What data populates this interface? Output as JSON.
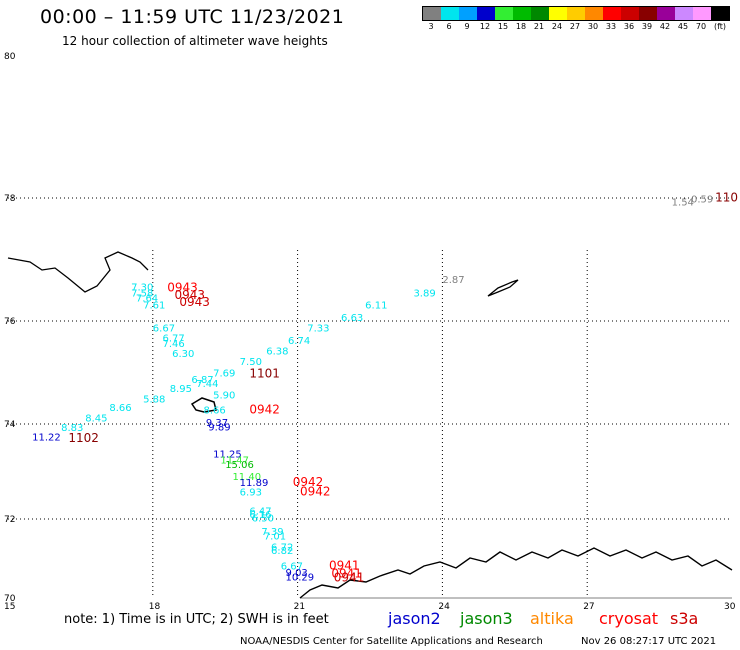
{
  "header": {
    "title": "00:00 – 11:59 UTC 11/23/2021",
    "subtitle": "12 hour collection of altimeter wave heights"
  },
  "legend": {
    "unit": "(ft)",
    "bins": [
      {
        "label": "3",
        "color": "#808080"
      },
      {
        "label": "6",
        "color": "#00e5ee"
      },
      {
        "label": "9",
        "color": "#00a0ff"
      },
      {
        "label": "12",
        "color": "#0000cc"
      },
      {
        "label": "15",
        "color": "#33ee33"
      },
      {
        "label": "18",
        "color": "#00bb00"
      },
      {
        "label": "21",
        "color": "#008800"
      },
      {
        "label": "24",
        "color": "#ffff00"
      },
      {
        "label": "27",
        "color": "#ffcc00"
      },
      {
        "label": "30",
        "color": "#ff8800"
      },
      {
        "label": "33",
        "color": "#ff0000"
      },
      {
        "label": "36",
        "color": "#cc0000"
      },
      {
        "label": "39",
        "color": "#880000"
      },
      {
        "label": "42",
        "color": "#990099"
      },
      {
        "label": "45",
        "color": "#cc88ff"
      },
      {
        "label": "70",
        "color": "#ff99ff"
      },
      {
        "label": "",
        "color": "#000000"
      }
    ]
  },
  "map": {
    "lat_labels": [
      "80",
      "78",
      "76",
      "74",
      "72",
      "70"
    ],
    "lon_labels": [
      "15",
      "18",
      "21",
      "24",
      "27",
      "30"
    ],
    "lon_range": [
      15,
      30
    ],
    "lat_range": [
      70,
      80
    ]
  },
  "labels": [
    {
      "text": "1.54",
      "lon": 28.75,
      "lat": 77.88,
      "color": "#808080"
    },
    {
      "text": "0.59",
      "lon": 29.15,
      "lat": 77.93,
      "color": "#808080"
    },
    {
      "text": "110",
      "lon": 29.65,
      "lat": 77.94,
      "color": "#880000",
      "big": true
    },
    {
      "text": "2.87",
      "lon": 24.0,
      "lat": 76.62,
      "color": "#808080"
    },
    {
      "text": "3.89",
      "lon": 23.4,
      "lat": 76.4,
      "color": "#00e5ee"
    },
    {
      "text": "6.11",
      "lon": 22.4,
      "lat": 76.2,
      "color": "#00e5ee"
    },
    {
      "text": "6.63",
      "lon": 21.9,
      "lat": 76.0,
      "color": "#00e5ee"
    },
    {
      "text": "7.33",
      "lon": 21.2,
      "lat": 75.8,
      "color": "#00e5ee"
    },
    {
      "text": "6.74",
      "lon": 20.8,
      "lat": 75.55,
      "color": "#00e5ee"
    },
    {
      "text": "6.38",
      "lon": 20.35,
      "lat": 75.35,
      "color": "#00e5ee"
    },
    {
      "text": "7.50",
      "lon": 19.8,
      "lat": 75.15,
      "color": "#00e5ee"
    },
    {
      "text": "1101",
      "lon": 20.0,
      "lat": 74.9,
      "color": "#880000",
      "big": true
    },
    {
      "text": "7.69",
      "lon": 19.25,
      "lat": 74.92,
      "color": "#00e5ee"
    },
    {
      "text": "6.87",
      "lon": 18.8,
      "lat": 74.8,
      "color": "#00e5ee"
    },
    {
      "text": "7.44",
      "lon": 18.9,
      "lat": 74.72,
      "color": "#00e5ee"
    },
    {
      "text": "8.95",
      "lon": 18.35,
      "lat": 74.62,
      "color": "#00e5ee"
    },
    {
      "text": "5.88",
      "lon": 17.8,
      "lat": 74.42,
      "color": "#00e5ee"
    },
    {
      "text": "5.90",
      "lon": 19.25,
      "lat": 74.5,
      "color": "#00e5ee"
    },
    {
      "text": "8.66",
      "lon": 17.1,
      "lat": 74.25,
      "color": "#00e5ee"
    },
    {
      "text": "8.45",
      "lon": 16.6,
      "lat": 74.05,
      "color": "#00e5ee"
    },
    {
      "text": "8.83",
      "lon": 16.1,
      "lat": 73.85,
      "color": "#00e5ee"
    },
    {
      "text": "11.22",
      "lon": 15.5,
      "lat": 73.65,
      "color": "#0000cc"
    },
    {
      "text": "1102",
      "lon": 16.25,
      "lat": 73.62,
      "color": "#880000",
      "big": true
    },
    {
      "text": "7.30",
      "lon": 17.55,
      "lat": 76.5,
      "color": "#00e5ee"
    },
    {
      "text": "7.58",
      "lon": 17.55,
      "lat": 76.4,
      "color": "#00e5ee"
    },
    {
      "text": "7.64",
      "lon": 17.65,
      "lat": 76.32,
      "color": "#00e5ee"
    },
    {
      "text": "7.61",
      "lon": 17.8,
      "lat": 76.2,
      "color": "#00e5ee"
    },
    {
      "text": "0943",
      "lon": 18.3,
      "lat": 76.48,
      "color": "#ff0000",
      "big": true
    },
    {
      "text": "0943",
      "lon": 18.45,
      "lat": 76.36,
      "color": "#cc0000",
      "big": true
    },
    {
      "text": "0943",
      "lon": 18.55,
      "lat": 76.24,
      "color": "#cc0000",
      "big": true
    },
    {
      "text": "6.67",
      "lon": 18.0,
      "lat": 75.8,
      "color": "#00e5ee"
    },
    {
      "text": "6.77",
      "lon": 18.2,
      "lat": 75.6,
      "color": "#00e5ee"
    },
    {
      "text": "7.46",
      "lon": 18.2,
      "lat": 75.5,
      "color": "#00e5ee"
    },
    {
      "text": "6.30",
      "lon": 18.4,
      "lat": 75.3,
      "color": "#00e5ee"
    },
    {
      "text": "8.66",
      "lon": 19.05,
      "lat": 74.2,
      "color": "#00e5ee"
    },
    {
      "text": "0942",
      "lon": 20.0,
      "lat": 74.2,
      "color": "#ff0000",
      "big": true
    },
    {
      "text": "9.37",
      "lon": 19.1,
      "lat": 73.96,
      "color": "#0000cc"
    },
    {
      "text": "9.89",
      "lon": 19.15,
      "lat": 73.86,
      "color": "#0000cc"
    },
    {
      "text": "11.25",
      "lon": 19.25,
      "lat": 73.3,
      "color": "#0000cc"
    },
    {
      "text": "11.47",
      "lon": 19.4,
      "lat": 73.17,
      "color": "#33ee33"
    },
    {
      "text": "15.06",
      "lon": 19.5,
      "lat": 73.07,
      "color": "#00bb00"
    },
    {
      "text": "11.40",
      "lon": 19.65,
      "lat": 72.82,
      "color": "#33ee33"
    },
    {
      "text": "11.89",
      "lon": 19.8,
      "lat": 72.7,
      "color": "#0000cc"
    },
    {
      "text": "0942",
      "lon": 20.9,
      "lat": 72.7,
      "color": "#ff0000",
      "big": true
    },
    {
      "text": "6.93",
      "lon": 19.8,
      "lat": 72.5,
      "color": "#00e5ee"
    },
    {
      "text": "0942",
      "lon": 21.05,
      "lat": 72.5,
      "color": "#ff0000",
      "big": true
    },
    {
      "text": "6.47",
      "lon": 20.0,
      "lat": 72.1,
      "color": "#00e5ee"
    },
    {
      "text": "6.16",
      "lon": 20.0,
      "lat": 72.02,
      "color": "#00e5ee"
    },
    {
      "text": "6.50",
      "lon": 20.05,
      "lat": 71.94,
      "color": "#00e5ee"
    },
    {
      "text": "7.39",
      "lon": 20.25,
      "lat": 71.6,
      "color": "#00e5ee"
    },
    {
      "text": "7.01",
      "lon": 20.3,
      "lat": 71.48,
      "color": "#00e5ee"
    },
    {
      "text": "6.72",
      "lon": 20.45,
      "lat": 71.2,
      "color": "#00e5ee"
    },
    {
      "text": "6.82",
      "lon": 20.45,
      "lat": 71.12,
      "color": "#00e5ee"
    },
    {
      "text": "6.67",
      "lon": 20.65,
      "lat": 70.72,
      "color": "#00e5ee"
    },
    {
      "text": "0941",
      "lon": 21.65,
      "lat": 70.72,
      "color": "#ff0000",
      "big": true
    },
    {
      "text": "9.03",
      "lon": 20.75,
      "lat": 70.56,
      "color": "#0000cc"
    },
    {
      "text": "10.29",
      "lon": 20.75,
      "lat": 70.44,
      "color": "#0000cc"
    },
    {
      "text": "0941",
      "lon": 21.7,
      "lat": 70.52,
      "color": "#ff0000",
      "big": true
    },
    {
      "text": "0941",
      "lon": 21.75,
      "lat": 70.42,
      "color": "#cc0000",
      "big": true
    }
  ],
  "footer": {
    "note": "note:  1) Time is in UTC;  2) SWH is in feet",
    "satellites": [
      {
        "name": "jason2",
        "color": "#0000cc"
      },
      {
        "name": "jason3",
        "color": "#008800"
      },
      {
        "name": "altika",
        "color": "#ff8800"
      },
      {
        "name": "cryosat",
        "color": "#ff0000"
      },
      {
        "name": "s3a",
        "color": "#cc0000"
      }
    ],
    "credit": "NOAA/NESDIS Center for Satellite Applications and Research",
    "generated": "Nov 26 08:27:17 UTC 2021"
  }
}
